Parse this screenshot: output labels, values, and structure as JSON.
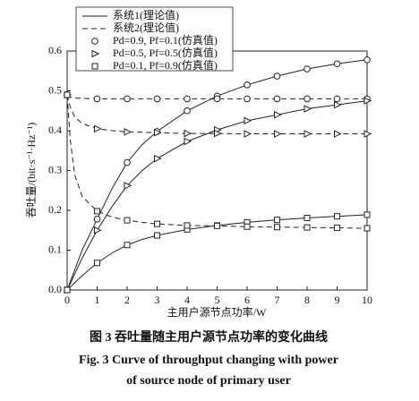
{
  "chart_data": {
    "type": "line",
    "xlabel": "主用户源节点功率/W",
    "ylabel": "吞吐量/(bit·s⁻¹·Hz⁻¹)",
    "xlim": [
      0,
      10
    ],
    "ylim": [
      0,
      0.6
    ],
    "xticks": [
      0,
      1,
      2,
      3,
      4,
      5,
      6,
      7,
      8,
      9,
      10
    ],
    "yticks": [
      {
        "value": 0,
        "label": "0.0"
      },
      0.1,
      0.2,
      0.3,
      0.4,
      0.5,
      0.6
    ],
    "legend_loc": "upper left",
    "color": "#222222",
    "x": [
      0,
      0.1,
      0.25,
      0.5,
      1,
      1.5,
      2,
      2.5,
      3,
      4,
      5,
      6,
      7,
      8,
      9,
      10
    ],
    "lines": [
      {
        "name": "系统1(理论值)",
        "dashed": false,
        "curves": [
          [
            0,
            0.02,
            0.05,
            0.1,
            0.178,
            0.255,
            0.32,
            0.365,
            0.398,
            0.45,
            0.487,
            0.515,
            0.537,
            0.555,
            0.568,
            0.578
          ],
          [
            0,
            0.015,
            0.04,
            0.08,
            0.15,
            0.21,
            0.262,
            0.3,
            0.33,
            0.373,
            0.402,
            0.425,
            0.44,
            0.455,
            0.465,
            0.475
          ],
          [
            0,
            0.007,
            0.018,
            0.036,
            0.068,
            0.093,
            0.113,
            0.127,
            0.137,
            0.152,
            0.162,
            0.17,
            0.176,
            0.181,
            0.185,
            0.189
          ]
        ]
      },
      {
        "name": "系统2(理论值)",
        "dashed": true,
        "curves": [
          [
            0.49,
            0.485,
            0.482,
            0.481,
            0.48,
            0.48,
            0.48,
            0.48,
            0.48,
            0.48,
            0.48,
            0.48,
            0.48,
            0.48,
            0.48,
            0.48
          ],
          [
            0.49,
            0.46,
            0.435,
            0.418,
            0.405,
            0.4,
            0.397,
            0.396,
            0.395,
            0.393,
            0.393,
            0.392,
            0.392,
            0.392,
            0.392,
            0.392
          ],
          [
            0.49,
            0.38,
            0.29,
            0.235,
            0.198,
            0.183,
            0.175,
            0.17,
            0.166,
            0.162,
            0.161,
            0.159,
            0.158,
            0.157,
            0.156,
            0.155
          ]
        ]
      }
    ],
    "marker_x": [
      0,
      1,
      2,
      3,
      4,
      5,
      6,
      7,
      8,
      9,
      10
    ],
    "series": [
      {
        "name": "Pd=0.9, Pf=0.1(仿真值)",
        "marker": "circle",
        "values": [
          [
            0,
            0.178,
            0.32,
            0.398,
            0.45,
            0.487,
            0.515,
            0.537,
            0.555,
            0.568,
            0.578
          ],
          [
            0.49,
            0.48,
            0.48,
            0.48,
            0.48,
            0.48,
            0.48,
            0.48,
            0.48,
            0.48,
            0.48
          ]
        ]
      },
      {
        "name": "Pd=0.5, Pf=0.5(仿真值)",
        "marker": "triangle",
        "values": [
          [
            0,
            0.15,
            0.262,
            0.33,
            0.373,
            0.402,
            0.425,
            0.44,
            0.455,
            0.465,
            0.475
          ],
          [
            0.49,
            0.405,
            0.397,
            0.395,
            0.393,
            0.393,
            0.392,
            0.392,
            0.392,
            0.392,
            0.392
          ]
        ]
      },
      {
        "name": "Pd=0.1, Pf=0.9(仿真值)",
        "marker": "square",
        "values": [
          [
            0,
            0.068,
            0.113,
            0.137,
            0.152,
            0.162,
            0.17,
            0.176,
            0.181,
            0.185,
            0.189
          ],
          [
            0.49,
            0.198,
            0.175,
            0.166,
            0.162,
            0.161,
            0.159,
            0.158,
            0.157,
            0.156,
            0.155
          ]
        ]
      }
    ],
    "caption": [
      "图 3   吞吐量随主用户源节点功率的变化曲线",
      "Fig. 3    Curve of throughput changing with power",
      "of source node of primary user"
    ]
  }
}
